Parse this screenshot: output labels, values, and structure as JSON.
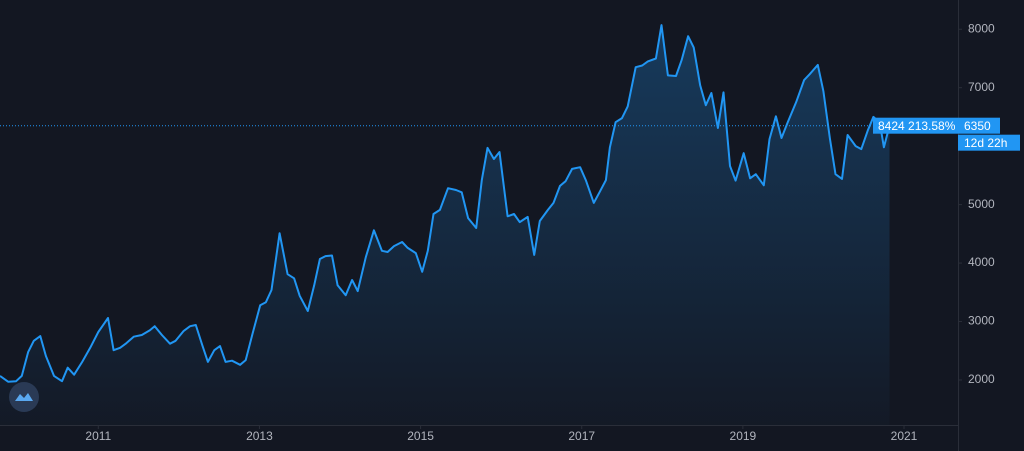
{
  "chart_data": {
    "type": "area",
    "x": [
      2009.78,
      2009.88,
      2009.98,
      2010.05,
      2010.13,
      2010.2,
      2010.28,
      2010.35,
      2010.45,
      2010.55,
      2010.62,
      2010.7,
      2010.8,
      2010.9,
      2011.0,
      2011.07,
      2011.12,
      2011.19,
      2011.27,
      2011.34,
      2011.44,
      2011.54,
      2011.64,
      2011.7,
      2011.79,
      2011.89,
      2011.96,
      2012.06,
      2012.14,
      2012.21,
      2012.29,
      2012.36,
      2012.44,
      2012.51,
      2012.58,
      2012.66,
      2012.76,
      2012.83,
      2012.91,
      2013.01,
      2013.08,
      2013.15,
      2013.25,
      2013.35,
      2013.43,
      2013.5,
      2013.6,
      2013.68,
      2013.75,
      2013.82,
      2013.9,
      2013.97,
      2014.07,
      2014.15,
      2014.22,
      2014.32,
      2014.42,
      2014.52,
      2014.59,
      2014.67,
      2014.77,
      2014.84,
      2014.94,
      2015.02,
      2015.09,
      2015.16,
      2015.24,
      2015.34,
      2015.44,
      2015.51,
      2015.59,
      2015.69,
      2015.76,
      2015.83,
      2015.91,
      2015.98,
      2016.08,
      2016.16,
      2016.23,
      2016.33,
      2016.41,
      2016.48,
      2016.58,
      2016.65,
      2016.73,
      2016.8,
      2016.88,
      2016.98,
      2017.05,
      2017.15,
      2017.22,
      2017.3,
      2017.35,
      2017.42,
      2017.5,
      2017.57,
      2017.67,
      2017.75,
      2017.82,
      2017.92,
      2017.99,
      2018.07,
      2018.17,
      2018.24,
      2018.32,
      2018.39,
      2018.47,
      2018.54,
      2018.61,
      2018.69,
      2018.76,
      2018.84,
      2018.91,
      2019.01,
      2019.09,
      2019.16,
      2019.26,
      2019.33,
      2019.41,
      2019.48,
      2019.56,
      2019.66,
      2019.76,
      2019.83,
      2019.93,
      2020.0,
      2020.08,
      2020.15,
      2020.23,
      2020.3,
      2020.4,
      2020.47,
      2020.55,
      2020.62,
      2020.7,
      2020.75,
      2020.82
    ],
    "series": [
      {
        "color": "#2196f3",
        "values": [
          2070,
          1970,
          1980,
          2070,
          2480,
          2670,
          2750,
          2410,
          2070,
          1980,
          2210,
          2090,
          2310,
          2550,
          2820,
          2960,
          3060,
          2510,
          2550,
          2620,
          2740,
          2770,
          2850,
          2920,
          2770,
          2620,
          2670,
          2840,
          2920,
          2940,
          2600,
          2310,
          2510,
          2580,
          2310,
          2330,
          2260,
          2340,
          2770,
          3280,
          3330,
          3540,
          4510,
          3810,
          3740,
          3440,
          3180,
          3620,
          4070,
          4120,
          4130,
          3620,
          3450,
          3710,
          3520,
          4100,
          4560,
          4210,
          4190,
          4290,
          4360,
          4260,
          4170,
          3850,
          4210,
          4840,
          4910,
          5280,
          5250,
          5210,
          4770,
          4600,
          5420,
          5970,
          5780,
          5900,
          4800,
          4840,
          4700,
          4790,
          4140,
          4720,
          4910,
          5030,
          5320,
          5400,
          5610,
          5640,
          5420,
          5030,
          5210,
          5420,
          5980,
          6410,
          6480,
          6680,
          7350,
          7380,
          7450,
          7500,
          8070,
          7210,
          7200,
          7470,
          7880,
          7690,
          7040,
          6700,
          6910,
          6310,
          6920,
          5660,
          5410,
          5880,
          5450,
          5520,
          5330,
          6120,
          6510,
          6140,
          6420,
          6750,
          7130,
          7230,
          7390,
          6940,
          6130,
          5520,
          5440,
          6190,
          6000,
          5950,
          6270,
          6500,
          6400,
          5980,
          6350
        ]
      }
    ],
    "xlim": [
      2009.78,
      2021.67
    ],
    "xticks": [
      2011,
      2013,
      2015,
      2017,
      2019,
      2021
    ],
    "ylim": [
      1230,
      8500
    ],
    "yticks": [
      2000,
      3000,
      4000,
      5000,
      6000,
      7000,
      8000
    ],
    "annotations": [
      "8424 213.58%",
      "12d 22h"
    ]
  }
}
